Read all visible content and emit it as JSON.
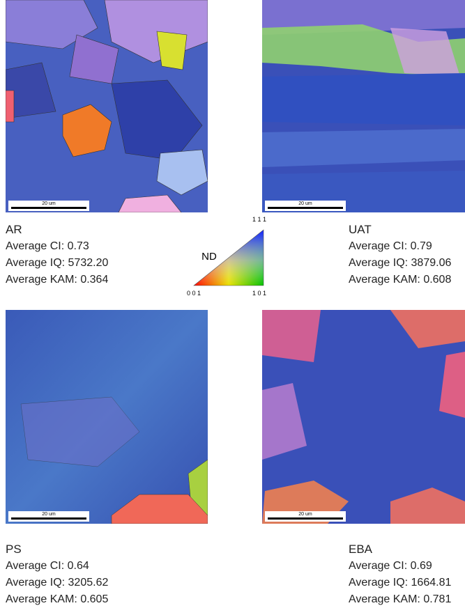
{
  "panels": [
    {
      "name": "AR",
      "lines": [
        "Average CI: 0.73",
        "Average IQ: 5732.20",
        "Average KAM: 0.364"
      ],
      "scale_bar": "20 um"
    },
    {
      "name": "UAT",
      "lines": [
        "Average CI: 0.79",
        "Average IQ: 3879.06",
        "Average KAM: 0.608"
      ],
      "scale_bar": "20 um"
    },
    {
      "name": "PS",
      "lines": [
        "Average CI: 0.64",
        "Average IQ: 3205.62",
        "Average KAM: 0.605"
      ],
      "scale_bar": "20 um"
    },
    {
      "name": "EBA",
      "lines": [
        "Average CI: 0.69",
        "Average IQ: 1664.81",
        "Average KAM: 0.781"
      ],
      "scale_bar": "20 um"
    }
  ],
  "legend": {
    "axis": "ND",
    "top": "1 1 1",
    "bottom_left": "0 0 1",
    "bottom_right": "1 0 1"
  }
}
